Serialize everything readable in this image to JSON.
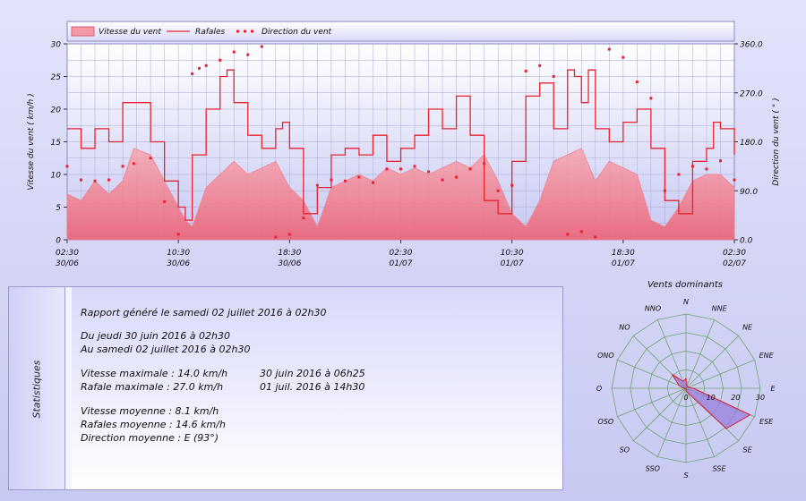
{
  "chart_data": [
    {
      "type": "area",
      "title": "",
      "legend": {
        "placement": "top-left",
        "entries": [
          "Vitesse du vent",
          "Rafales",
          "Direction du vent"
        ]
      },
      "ylabel": "Vitesse du vent  ( km/h )",
      "y2label": "Direction du vent  ( ° )",
      "ylim": [
        0,
        30
      ],
      "y2lim": [
        0,
        360
      ],
      "yticks": [
        "0",
        "5",
        "10",
        "15",
        "20",
        "25",
        "30"
      ],
      "y2ticks": [
        "0.0",
        "90.0",
        "180.0",
        "270.0",
        "360.0"
      ],
      "xlim": [
        "30/06 02:30",
        "02/07 02:30"
      ],
      "xticks": [
        {
          "time": "02:30",
          "date": "30/06"
        },
        {
          "time": "10:30",
          "date": "30/06"
        },
        {
          "time": "18:30",
          "date": "30/06"
        },
        {
          "time": "02:30",
          "date": "01/07"
        },
        {
          "time": "10:30",
          "date": "01/07"
        },
        {
          "time": "18:30",
          "date": "01/07"
        },
        {
          "time": "02:30",
          "date": "02/07"
        }
      ],
      "grid": true,
      "series": [
        {
          "name": "Vitesse du vent",
          "unit": "km/h",
          "color": "#f08a9a",
          "x_hours": [
            0,
            1,
            2,
            3,
            4,
            4.8,
            6,
            7,
            8,
            8.5,
            9,
            10,
            11,
            12,
            13,
            14,
            15,
            16,
            17,
            18,
            19,
            20,
            21,
            22,
            23,
            24,
            25,
            26,
            27,
            28,
            29,
            30,
            31,
            32,
            33,
            34,
            35,
            36,
            37,
            38,
            39,
            40,
            41,
            42,
            43,
            44,
            45,
            46,
            47,
            48
          ],
          "values": [
            7,
            6,
            9,
            7,
            9,
            14,
            13,
            9,
            5,
            3,
            2,
            8,
            10,
            12,
            10,
            11,
            12,
            8,
            6,
            2,
            8,
            9,
            10,
            9,
            11,
            10,
            11,
            10,
            11,
            12,
            11,
            13,
            9,
            4,
            2,
            6,
            12,
            13,
            14,
            9,
            12,
            11,
            10,
            3,
            2,
            5,
            9,
            10,
            10,
            8
          ]
        },
        {
          "name": "Rafales",
          "unit": "km/h",
          "color": "#e8222e",
          "x_hours": [
            0,
            1,
            2,
            3,
            4,
            4.8,
            6,
            7,
            8,
            8.5,
            9,
            10,
            11,
            11.5,
            12,
            13,
            14,
            15,
            15.5,
            16,
            17,
            18,
            19,
            20,
            21,
            22,
            23,
            24,
            25,
            26,
            27,
            28,
            29,
            30,
            31,
            32,
            33,
            34,
            35,
            36,
            36.5,
            37,
            37.5,
            38,
            39,
            40,
            41,
            42,
            43,
            44,
            45,
            46,
            46.5,
            47,
            48
          ],
          "values": [
            17,
            14,
            17,
            15,
            21,
            21,
            15,
            9,
            5,
            3,
            13,
            20,
            25,
            26,
            21,
            16,
            14,
            17,
            18,
            14,
            4,
            8,
            13,
            14,
            13,
            16,
            12,
            14,
            16,
            20,
            17,
            22,
            16,
            6,
            4,
            12,
            22,
            24,
            17,
            26,
            25,
            21,
            26,
            17,
            15,
            18,
            20,
            14,
            6,
            4,
            12,
            14,
            18,
            17,
            13
          ]
        },
        {
          "name": "Direction du vent",
          "unit": "°",
          "color": "#e8222e",
          "x_hours": [
            0,
            1,
            2,
            3,
            4,
            4.8,
            6,
            7,
            8,
            9,
            9.5,
            10,
            11,
            12,
            13,
            14,
            15,
            16,
            17,
            18,
            19,
            20,
            21,
            22,
            23,
            24,
            25,
            26,
            27,
            28,
            29,
            30,
            31,
            32,
            33,
            34,
            35,
            36,
            37,
            38,
            39,
            40,
            41,
            42,
            43,
            44,
            45,
            46,
            47,
            48
          ],
          "values": [
            135,
            110,
            108,
            110,
            135,
            140,
            150,
            70,
            10,
            305,
            315,
            320,
            330,
            345,
            340,
            355,
            5,
            10,
            40,
            100,
            110,
            108,
            115,
            105,
            130,
            130,
            135,
            125,
            110,
            115,
            130,
            140,
            90,
            100,
            310,
            320,
            300,
            10,
            15,
            5,
            350,
            335,
            290,
            260,
            90,
            120,
            135,
            130,
            145,
            110
          ]
        }
      ]
    },
    {
      "type": "radar",
      "title": "Vents dominants",
      "directions": [
        "N",
        "NNE",
        "NE",
        "ENE",
        "E",
        "ESE",
        "SE",
        "SSE",
        "S",
        "SSO",
        "SO",
        "OSO",
        "O",
        "ONO",
        "NO",
        "NNO"
      ],
      "rlim": [
        0,
        30
      ],
      "rticks": [
        "0",
        "10",
        "20",
        "30"
      ],
      "values": [
        4,
        1,
        1,
        1,
        3,
        28,
        23,
        2,
        1,
        0,
        0,
        0,
        1,
        3,
        8,
        3
      ]
    }
  ],
  "statistics": {
    "label": "Statistiques",
    "generated": "Rapport généré le samedi 02 juillet 2016 à 02h30",
    "period_from": "Du jeudi 30 juin 2016 à 02h30",
    "period_to": "Au samedi 02 juillet 2016 à 02h30",
    "max_speed": "Vitesse maximale : 14.0 km/h",
    "max_speed_time": "30 juin 2016 à 06h25",
    "max_gust": "Rafale maximale : 27.0 km/h",
    "max_gust_time": "01 juil. 2016 à 14h30",
    "avg_speed": "Vitesse moyenne : 8.1 km/h",
    "avg_gust": "Rafales moyenne : 14.6 km/h",
    "avg_direction": "Direction moyenne : E (93°)"
  }
}
